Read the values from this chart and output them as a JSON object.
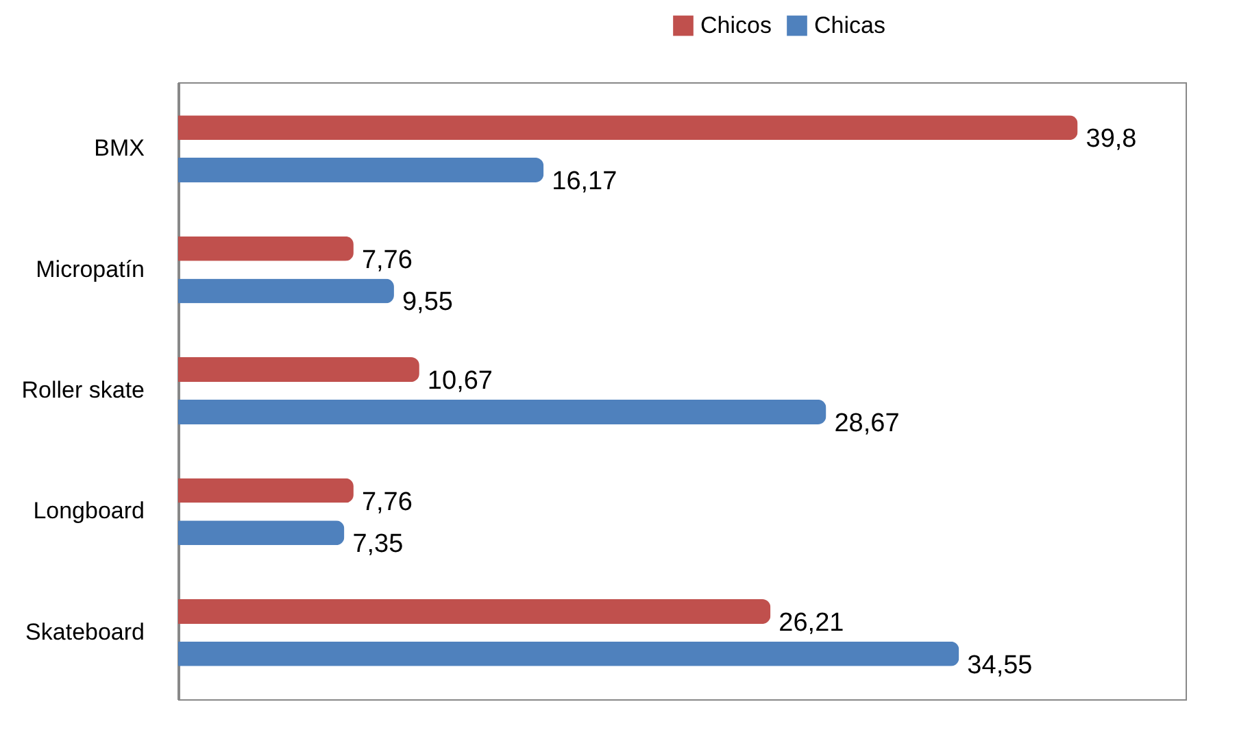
{
  "chart_data": {
    "type": "bar",
    "orientation": "horizontal",
    "categories": [
      "BMX",
      "Micropatín",
      "Roller skate",
      "Longboard",
      "Skateboard"
    ],
    "series": [
      {
        "name": "Chicos",
        "color": "#c0504d",
        "values": [
          39.8,
          7.76,
          10.67,
          7.76,
          26.21
        ],
        "value_labels": [
          "39,8",
          "7,76",
          "10,67",
          "7,76",
          "26,21"
        ]
      },
      {
        "name": "Chicas",
        "color": "#4f81bd",
        "values": [
          16.17,
          9.55,
          28.67,
          7.35,
          34.55
        ],
        "value_labels": [
          "16,17",
          "9,55",
          "28,67",
          "7,35",
          "34,55"
        ]
      }
    ],
    "legend": "top",
    "tick_labels": "y"
  }
}
